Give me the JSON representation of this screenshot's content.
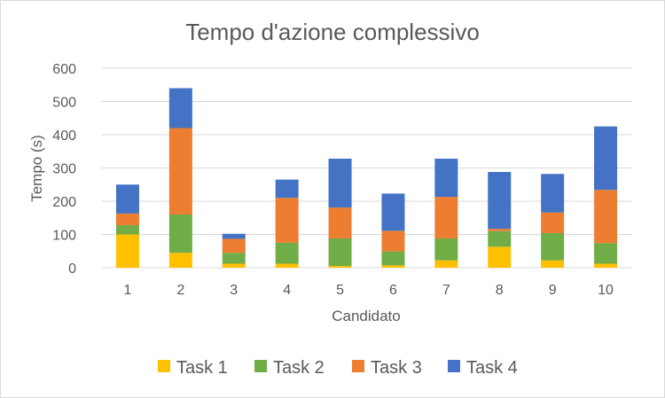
{
  "chart_data": {
    "type": "bar",
    "stacked": true,
    "title": "Tempo d'azione complessivo",
    "xlabel": "Candidato",
    "ylabel": "Tempo (s)",
    "ylim": [
      0,
      600
    ],
    "yticks": [
      0,
      100,
      200,
      300,
      400,
      500,
      600
    ],
    "grid": true,
    "legend_position": "bottom",
    "categories": [
      "1",
      "2",
      "3",
      "4",
      "5",
      "6",
      "7",
      "8",
      "9",
      "10"
    ],
    "series": [
      {
        "name": "Task 1",
        "color": "#FFC000",
        "values": [
          100,
          45,
          12,
          12,
          5,
          7,
          22,
          63,
          22,
          12
        ]
      },
      {
        "name": "Task 2",
        "color": "#70AD47",
        "values": [
          28,
          115,
          33,
          63,
          83,
          42,
          66,
          47,
          82,
          62
        ]
      },
      {
        "name": "Task 3",
        "color": "#ED7D31",
        "values": [
          35,
          260,
          42,
          135,
          93,
          62,
          125,
          7,
          62,
          160
        ]
      },
      {
        "name": "Task 4",
        "color": "#4472C4",
        "values": [
          87,
          120,
          15,
          55,
          147,
          112,
          115,
          171,
          116,
          191
        ]
      }
    ]
  }
}
